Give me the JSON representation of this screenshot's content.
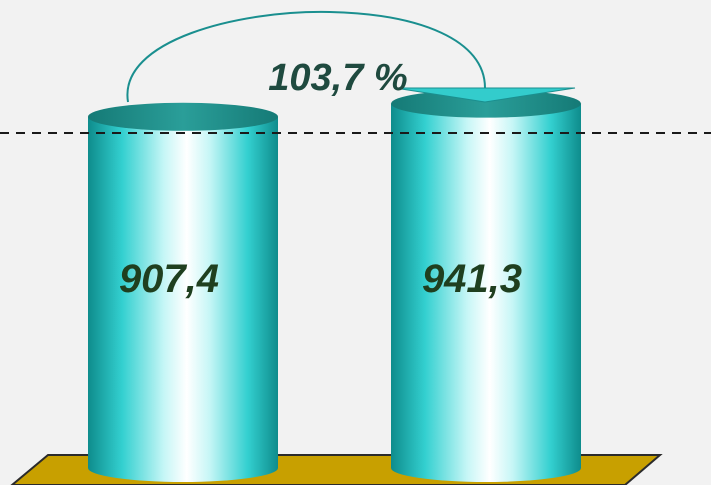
{
  "chart_data": {
    "type": "bar",
    "style": "3d-cylinder",
    "categories": [
      "",
      ""
    ],
    "values": [
      907.4,
      941.3
    ],
    "data_labels": [
      "907,4",
      "941,3"
    ],
    "annotation": {
      "type": "growth-arrow",
      "from": 0,
      "to": 1,
      "label": "103,7 %"
    },
    "reference_line": {
      "style": "dashed",
      "value": 907.4
    },
    "title": "",
    "xlabel": "",
    "ylabel": "",
    "grid": false,
    "legend": "none"
  },
  "colors": {
    "cylinder_light": "#ffffff",
    "cylinder_mid": "#33d6d6",
    "cylinder_dark": "#0e8c8c",
    "cylinder_top": "#1e8a86",
    "base_fill": "#c8a000",
    "base_stroke": "#2b2b2b",
    "arrow_fill": "#33cccc",
    "arrow_stroke": "#1a8f8f",
    "dash_line": "#1a1a1a",
    "background": "#f2f2f2"
  }
}
